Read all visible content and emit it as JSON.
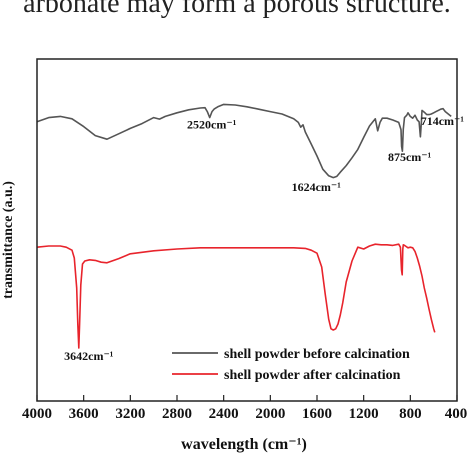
{
  "page": {
    "top_text": "arbonate may form a porous structure."
  },
  "chart_data": {
    "type": "line",
    "title": "",
    "xlabel": "wavelength (cm⁻¹)",
    "ylabel": "transmittance (a.u.)",
    "xlim": [
      4000,
      400
    ],
    "x_ticks": [
      "4000",
      "3600",
      "3200",
      "2800",
      "2400",
      "2000",
      "1600",
      "1200",
      "800",
      "400"
    ],
    "grid": false,
    "legend_position": "bottom-right",
    "series": [
      {
        "name": "shell powder before calcination",
        "color": "#555555",
        "x": [
          4000,
          3900,
          3800,
          3700,
          3600,
          3500,
          3400,
          3300,
          3200,
          3100,
          3000,
          2950,
          2900,
          2800,
          2700,
          2600,
          2560,
          2540,
          2520,
          2500,
          2480,
          2450,
          2400,
          2300,
          2200,
          2100,
          2000,
          1900,
          1800,
          1760,
          1740,
          1720,
          1700,
          1650,
          1600,
          1550,
          1500,
          1460,
          1430,
          1400,
          1350,
          1300,
          1250,
          1200,
          1150,
          1100,
          1080,
          1060,
          1040,
          1000,
          950,
          900,
          880,
          875,
          868,
          860,
          850,
          830,
          820,
          800,
          780,
          760,
          740,
          725,
          714,
          705,
          700,
          680,
          660,
          640,
          620,
          600,
          580,
          560,
          540,
          520,
          500,
          450
        ],
        "y": [
          97.0,
          104.0,
          106.0,
          102.0,
          89.0,
          74.0,
          68.0,
          77.0,
          86.0,
          94.0,
          104.0,
          101.5,
          106.0,
          112.0,
          117.0,
          120.0,
          120.5,
          114.0,
          104.0,
          114.0,
          118.5,
          122.0,
          126.0,
          125.0,
          122.0,
          118.0,
          114.0,
          110.0,
          102.0,
          96.0,
          88.0,
          92.0,
          80.0,
          60.0,
          40.0,
          18.0,
          7.0,
          4.0,
          6.0,
          13.0,
          24.0,
          37.0,
          51.0,
          71.0,
          90.0,
          102.0,
          82.0,
          96.0,
          103.0,
          103.0,
          100.0,
          96.0,
          84.0,
          56.0,
          48.0,
          85.0,
          104.0,
          108.0,
          112.0,
          106.0,
          103.0,
          108.0,
          100.0,
          97.0,
          72.0,
          97.0,
          116.0,
          113.0,
          109.0,
          109.0,
          110.0,
          112.0,
          114.0,
          116.0,
          118.0,
          119.0,
          114.0,
          106.0
        ]
      },
      {
        "name": "shell powder after calcination",
        "color": "#e8242c",
        "x": [
          4000,
          3900,
          3800,
          3750,
          3700,
          3680,
          3660,
          3650,
          3642,
          3635,
          3625,
          3610,
          3590,
          3550,
          3500,
          3450,
          3400,
          3300,
          3200,
          3000,
          2800,
          2600,
          2400,
          2200,
          2000,
          1800,
          1700,
          1650,
          1600,
          1560,
          1530,
          1500,
          1480,
          1460,
          1440,
          1420,
          1400,
          1380,
          1350,
          1300,
          1250,
          1200,
          1150,
          1100,
          1050,
          1000,
          950,
          900,
          885,
          876,
          870,
          865,
          860,
          850,
          820,
          800,
          780,
          760,
          740,
          720,
          700,
          680,
          660,
          640,
          620,
          600,
          590
        ],
        "y": [
          -112.0,
          -110.0,
          -110.0,
          -112.0,
          -117.0,
          -130.0,
          -180.0,
          -240.0,
          -280.0,
          -240.0,
          -175.0,
          -140.0,
          -135.0,
          -133.0,
          -134.0,
          -137.0,
          -138.0,
          -131.0,
          -123.0,
          -118.0,
          -115.0,
          -113.0,
          -113.0,
          -113.0,
          -113.0,
          -113.0,
          -114.0,
          -117.0,
          -122.0,
          -145.0,
          -190.0,
          -232.0,
          -248.0,
          -250.0,
          -248.0,
          -240.0,
          -225.0,
          -205.0,
          -170.0,
          -135.0,
          -112.0,
          -115.0,
          -110.0,
          -107.0,
          -108.0,
          -108.0,
          -109.0,
          -107.0,
          -112.0,
          -150.0,
          -158.0,
          -115.0,
          -108.0,
          -109.0,
          -113.0,
          -112.0,
          -113.0,
          -119.0,
          -130.0,
          -144.0,
          -160.0,
          -180.0,
          -197.0,
          -215.0,
          -232.0,
          -248.0,
          -254.0
        ]
      }
    ],
    "annotations": [
      {
        "text": "2520cm⁻¹",
        "x": 2520,
        "y": 104.0
      },
      {
        "text": "1624cm⁻¹",
        "x": 1624,
        "y": 5.0
      },
      {
        "text": "875cm⁻¹",
        "x": 875,
        "y": 48.0
      },
      {
        "text": "714cm⁻¹",
        "x": 714,
        "y": 72.0
      },
      {
        "text": "3642cm⁻¹",
        "x": 3642,
        "y": -280.0
      }
    ]
  }
}
